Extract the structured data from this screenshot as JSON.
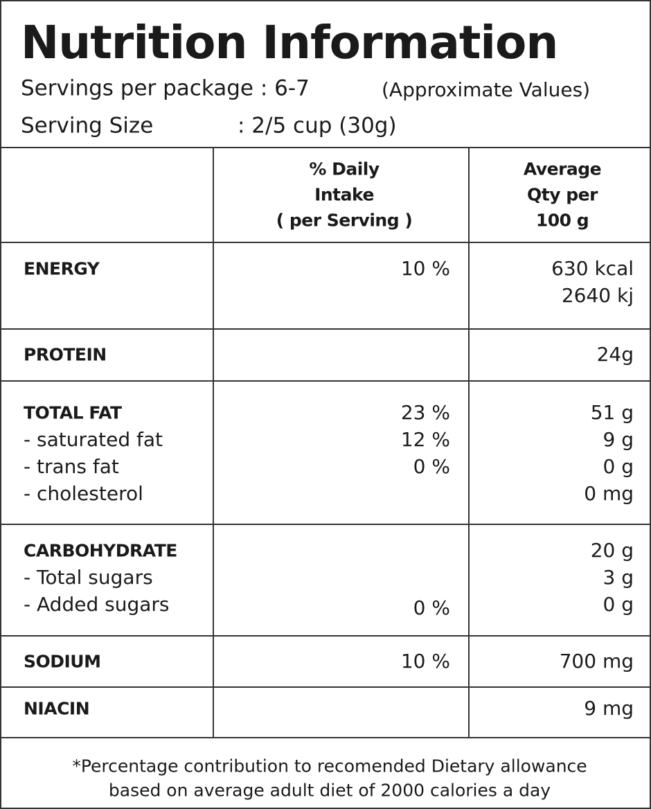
{
  "header": {
    "title": "Nutrition Information",
    "servings_label": "Servings per package : 6-7",
    "servings_note": "(Approximate Values)",
    "serving_size_label": "Serving Size",
    "serving_size_value": ": 2/5 cup (30g)"
  },
  "table": {
    "columns": [
      {
        "lines": [
          "% Daily",
          "Intake",
          "( per Serving )"
        ]
      },
      {
        "lines": [
          "Average",
          "Qty per",
          "100 g"
        ]
      }
    ],
    "sections": [
      {
        "lines": [
          {
            "name": "ENERGY",
            "daily": "10 %",
            "qty": "630 kcal"
          },
          {
            "qty": "2640 kj"
          }
        ]
      },
      {
        "lines": [
          {
            "name": "PROTEIN",
            "qty": "24g"
          }
        ]
      },
      {
        "lines": [
          {
            "name": "TOTAL FAT",
            "daily": "23 %",
            "qty": "51 g"
          },
          {
            "name": "- saturated fat",
            "daily": "12 %",
            "qty": "9 g"
          },
          {
            "name": "- trans fat",
            "daily": "0 %",
            "qty": "0 g"
          },
          {
            "name": "- cholesterol",
            "qty": "0 mg"
          }
        ]
      },
      {
        "lines": [
          {
            "name": "CARBOHYDRATE",
            "qty": "20 g"
          },
          {
            "name": "- Total sugars",
            "qty": "3 g"
          },
          {
            "name": "- Added sugars",
            "daily": "0 %",
            "qty": "0 g"
          }
        ]
      },
      {
        "lines": [
          {
            "name": "SODIUM",
            "daily": "10 %",
            "qty": "700 mg"
          }
        ]
      },
      {
        "lines": [
          {
            "name": "NIACIN",
            "qty": "9 mg"
          }
        ]
      }
    ]
  },
  "footer": {
    "lines": [
      "*Percentage contribution to recomended Dietary allowance",
      "based on average adult diet of 2000 calories a day"
    ]
  }
}
